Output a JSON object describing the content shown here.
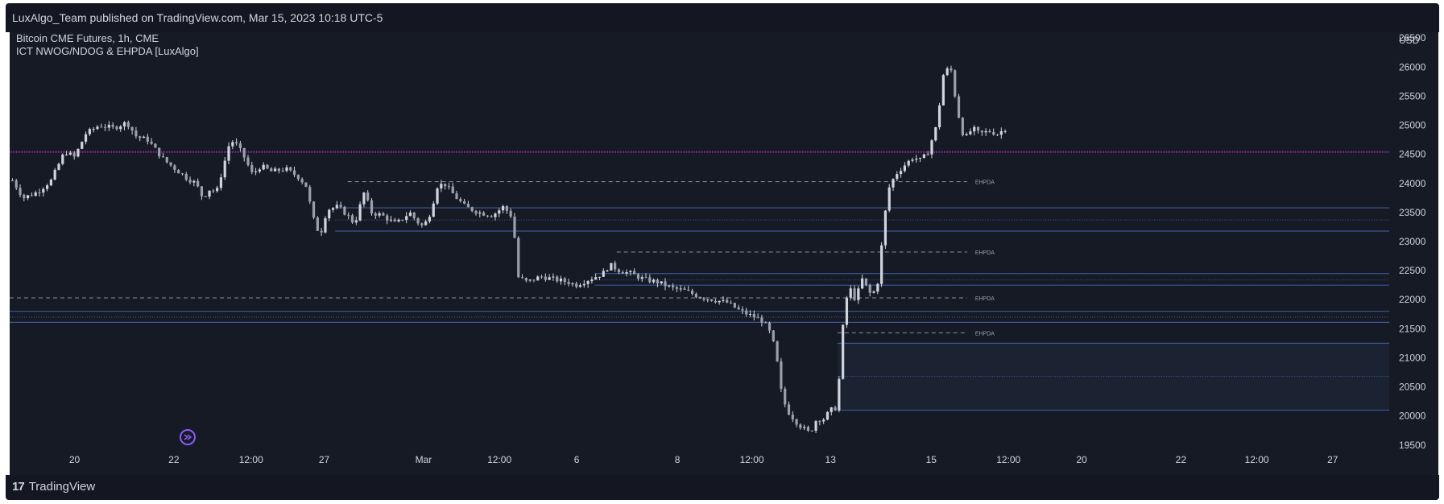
{
  "header": {
    "published_by": "LuxAlgo_Team published on TradingView.com, Mar 15, 2023 10:18 UTC-5"
  },
  "legend": {
    "symbol_line": "Bitcoin CME Futures, 1h, CME",
    "indicator_line": "ICT NWOG/NDOG & EHPDA [LuxAlgo]"
  },
  "footer": {
    "brand": "TradingView",
    "logo_icon": "tradingview-logo-icon"
  },
  "colors": {
    "background": "#161a25",
    "candle": "#d1d4dc",
    "purple_line": "#9c27b0",
    "gap_band": "#3a5794",
    "gap_fill": "#1c2333",
    "dashed": "#8a8f9c",
    "event_icon": "#8b5cf6"
  },
  "chart_data": {
    "type": "candlestick",
    "currency": "USD",
    "y_ticks": [
      19500,
      20000,
      20500,
      21000,
      21500,
      22000,
      22500,
      23000,
      23500,
      24000,
      24500,
      25000,
      25500,
      26000,
      26500
    ],
    "ylim": [
      19400,
      26600
    ],
    "x_ticks": [
      {
        "label": "20",
        "t": 0.047
      },
      {
        "label": "22",
        "t": 0.119
      },
      {
        "label": "12:00",
        "t": 0.175
      },
      {
        "label": "27",
        "t": 0.228
      },
      {
        "label": "Mar",
        "t": 0.3
      },
      {
        "label": "12:00",
        "t": 0.355
      },
      {
        "label": "6",
        "t": 0.411
      },
      {
        "label": "8",
        "t": 0.484
      },
      {
        "label": "12:00",
        "t": 0.538
      },
      {
        "label": "13",
        "t": 0.595
      },
      {
        "label": "15",
        "t": 0.668
      },
      {
        "label": "12:00",
        "t": 0.724
      },
      {
        "label": "20",
        "t": 0.777
      },
      {
        "label": "22",
        "t": 0.849
      },
      {
        "label": "12:00",
        "t": 0.904
      },
      {
        "label": "27",
        "t": 0.959
      }
    ],
    "price_path": [
      [
        0.002,
        24050
      ],
      [
        0.01,
        23750
      ],
      [
        0.02,
        23850
      ],
      [
        0.03,
        24050
      ],
      [
        0.04,
        24550
      ],
      [
        0.047,
        24450
      ],
      [
        0.055,
        24850
      ],
      [
        0.065,
        25000
      ],
      [
        0.075,
        24950
      ],
      [
        0.085,
        25050
      ],
      [
        0.092,
        24800
      ],
      [
        0.1,
        24750
      ],
      [
        0.105,
        24600
      ],
      [
        0.112,
        24400
      ],
      [
        0.12,
        24250
      ],
      [
        0.128,
        24100
      ],
      [
        0.135,
        24000
      ],
      [
        0.14,
        23750
      ],
      [
        0.145,
        23900
      ],
      [
        0.15,
        23850
      ],
      [
        0.155,
        24300
      ],
      [
        0.16,
        24750
      ],
      [
        0.165,
        24650
      ],
      [
        0.17,
        24450
      ],
      [
        0.176,
        24150
      ],
      [
        0.182,
        24300
      ],
      [
        0.19,
        24200
      ],
      [
        0.2,
        24250
      ],
      [
        0.21,
        24100
      ],
      [
        0.215,
        23950
      ],
      [
        0.22,
        23400
      ],
      [
        0.225,
        23100
      ],
      [
        0.23,
        23550
      ],
      [
        0.238,
        23600
      ],
      [
        0.245,
        23450
      ],
      [
        0.25,
        23300
      ],
      [
        0.257,
        23850
      ],
      [
        0.262,
        23500
      ],
      [
        0.27,
        23450
      ],
      [
        0.28,
        23300
      ],
      [
        0.29,
        23500
      ],
      [
        0.295,
        23350
      ],
      [
        0.3,
        23250
      ],
      [
        0.305,
        23500
      ],
      [
        0.31,
        23950
      ],
      [
        0.315,
        24000
      ],
      [
        0.322,
        23800
      ],
      [
        0.33,
        23600
      ],
      [
        0.34,
        23500
      ],
      [
        0.35,
        23450
      ],
      [
        0.358,
        23600
      ],
      [
        0.365,
        23400
      ],
      [
        0.368,
        22400
      ],
      [
        0.375,
        22300
      ],
      [
        0.385,
        22400
      ],
      [
        0.395,
        22350
      ],
      [
        0.405,
        22300
      ],
      [
        0.41,
        22250
      ],
      [
        0.42,
        22350
      ],
      [
        0.43,
        22450
      ],
      [
        0.435,
        22600
      ],
      [
        0.442,
        22500
      ],
      [
        0.45,
        22450
      ],
      [
        0.46,
        22350
      ],
      [
        0.47,
        22300
      ],
      [
        0.48,
        22200
      ],
      [
        0.49,
        22150
      ],
      [
        0.5,
        22050
      ],
      [
        0.51,
        22000
      ],
      [
        0.52,
        21950
      ],
      [
        0.53,
        21800
      ],
      [
        0.54,
        21700
      ],
      [
        0.545,
        21650
      ],
      [
        0.55,
        21500
      ],
      [
        0.555,
        21150
      ],
      [
        0.56,
        20300
      ],
      [
        0.565,
        20050
      ],
      [
        0.572,
        19850
      ],
      [
        0.58,
        19700
      ],
      [
        0.585,
        19950
      ],
      [
        0.59,
        19950
      ],
      [
        0.595,
        20100
      ],
      [
        0.6,
        20150
      ],
      [
        0.603,
        21350
      ],
      [
        0.608,
        22250
      ],
      [
        0.613,
        22000
      ],
      [
        0.618,
        22350
      ],
      [
        0.625,
        22050
      ],
      [
        0.63,
        22350
      ],
      [
        0.633,
        23200
      ],
      [
        0.637,
        23900
      ],
      [
        0.642,
        24150
      ],
      [
        0.648,
        24300
      ],
      [
        0.655,
        24450
      ],
      [
        0.66,
        24400
      ],
      [
        0.665,
        24500
      ],
      [
        0.672,
        25000
      ],
      [
        0.677,
        25900
      ],
      [
        0.682,
        26000
      ],
      [
        0.687,
        25250
      ],
      [
        0.692,
        24750
      ],
      [
        0.698,
        24950
      ],
      [
        0.703,
        24850
      ],
      [
        0.71,
        24900
      ],
      [
        0.716,
        24850
      ],
      [
        0.722,
        24950
      ]
    ],
    "overlays": {
      "purple_level": 24540,
      "blue_band_lines": [
        {
          "y": 23580,
          "x0": 0.236,
          "style": "solid"
        },
        {
          "y": 23370,
          "x0": 0.236,
          "style": "dotted"
        },
        {
          "y": 23180,
          "x0": 0.236,
          "style": "solid"
        },
        {
          "y": 22450,
          "x0": 0.424,
          "style": "solid"
        },
        {
          "y": 22340,
          "x0": 0.424,
          "style": "dotted"
        },
        {
          "y": 22250,
          "x0": 0.424,
          "style": "solid"
        },
        {
          "y": 21800,
          "x0": 0.0,
          "style": "solid"
        },
        {
          "y": 21700,
          "x0": 0.0,
          "style": "dotted"
        },
        {
          "y": 21610,
          "x0": 0.0,
          "style": "solid"
        },
        {
          "y": 21250,
          "x0": 0.6,
          "style": "solid"
        },
        {
          "y": 20680,
          "x0": 0.6,
          "style": "dotted"
        },
        {
          "y": 20100,
          "x0": 0.6,
          "style": "solid"
        }
      ],
      "gap_fill_band": {
        "x0": 0.6,
        "y_top": 21250,
        "y_bottom": 20100
      },
      "ehpda_lines": [
        {
          "y": 24030,
          "x0": 0.245,
          "x1": 0.694,
          "label": "EHPDA"
        },
        {
          "y": 22820,
          "x0": 0.44,
          "x1": 0.694,
          "label": "EHPDA"
        },
        {
          "y": 22030,
          "x0": 0.0,
          "x1": 0.694,
          "label": "EHPDA"
        },
        {
          "y": 21430,
          "x0": 0.6,
          "x1": 0.694,
          "label": "EHPDA"
        }
      ]
    },
    "event_marker_t": 0.129
  }
}
